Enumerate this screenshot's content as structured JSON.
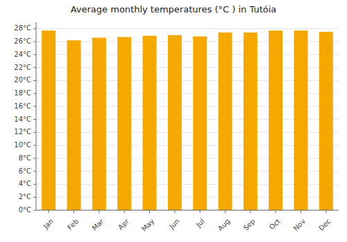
{
  "chart_data": {
    "type": "bar",
    "title": "Average monthly temperatures (°C ) in Tutóia",
    "categories": [
      "Jan",
      "Feb",
      "Mar",
      "Apr",
      "May",
      "Jun",
      "Jul",
      "Aug",
      "Sep",
      "Oct",
      "Nov",
      "Dec"
    ],
    "values": [
      27.7,
      26.2,
      26.6,
      26.7,
      26.9,
      27.0,
      26.8,
      27.4,
      27.4,
      27.7,
      27.7,
      27.5
    ],
    "color": "#F5A800",
    "ylim": [
      0,
      29
    ],
    "yticks": [
      {
        "value": 0,
        "label": "0°C"
      },
      {
        "value": 2,
        "label": "2°C"
      },
      {
        "value": 4,
        "label": "4°C"
      },
      {
        "value": 6,
        "label": "6°C"
      },
      {
        "value": 8,
        "label": "8°C"
      },
      {
        "value": 10,
        "label": "10°C"
      },
      {
        "value": 12,
        "label": "12°C"
      },
      {
        "value": 14,
        "label": "14°C"
      },
      {
        "value": 16,
        "label": "16°C"
      },
      {
        "value": 18,
        "label": "18°C"
      },
      {
        "value": 20,
        "label": "20°C"
      },
      {
        "value": 22,
        "label": "22°C"
      },
      {
        "value": 24,
        "label": "24°C"
      },
      {
        "value": 26,
        "label": "26°C"
      },
      {
        "value": 28,
        "label": "28°C"
      }
    ],
    "grid": true
  }
}
